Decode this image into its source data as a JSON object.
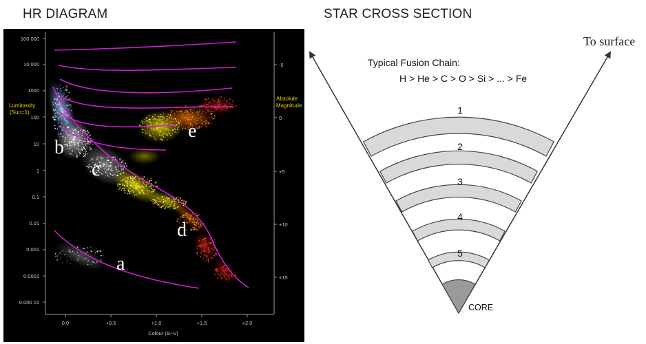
{
  "headings": {
    "hr_diagram": "HR DIAGRAM",
    "star_cross_section": "STAR CROSS SECTION"
  },
  "hr_chart": {
    "y_axis_title_lines": [
      "Luminosity",
      "(Sun=1)"
    ],
    "right_axis_title_lines": [
      "Absolute",
      "Magnitude"
    ],
    "x_axis_title": "Colour (B−V)",
    "luminosity_ticks": [
      "100 000",
      "10 000",
      "1000",
      "100",
      "10",
      "1",
      "0.1",
      "0.01",
      "0.001",
      "0.0001",
      "0.000 01"
    ],
    "magnitude_ticks": [
      "-5",
      "0",
      "+5",
      "+10",
      "+15"
    ],
    "colour_ticks": [
      "0.0",
      "+0.5",
      "+1.0",
      "+1.5",
      "+2.0"
    ],
    "region_labels": [
      "a",
      "b",
      "c",
      "d",
      "e"
    ],
    "colors": {
      "background": "#000000",
      "track_line": "#d21ed2",
      "axis_title": "#e8d000",
      "tick_text": "#c8c8c8"
    }
  },
  "star_section": {
    "fusion_title": "Typical Fusion Chain:",
    "fusion_chain": "H  > He > C > O > Si > ... > Fe",
    "surface_label": "To surface",
    "core_label": "CORE",
    "layer_numbers": [
      "1",
      "2",
      "3",
      "4",
      "5"
    ],
    "colors": {
      "shell_fill": "#d9d9d9",
      "core_fill": "#9a9a9a",
      "outline": "#444444"
    }
  }
}
